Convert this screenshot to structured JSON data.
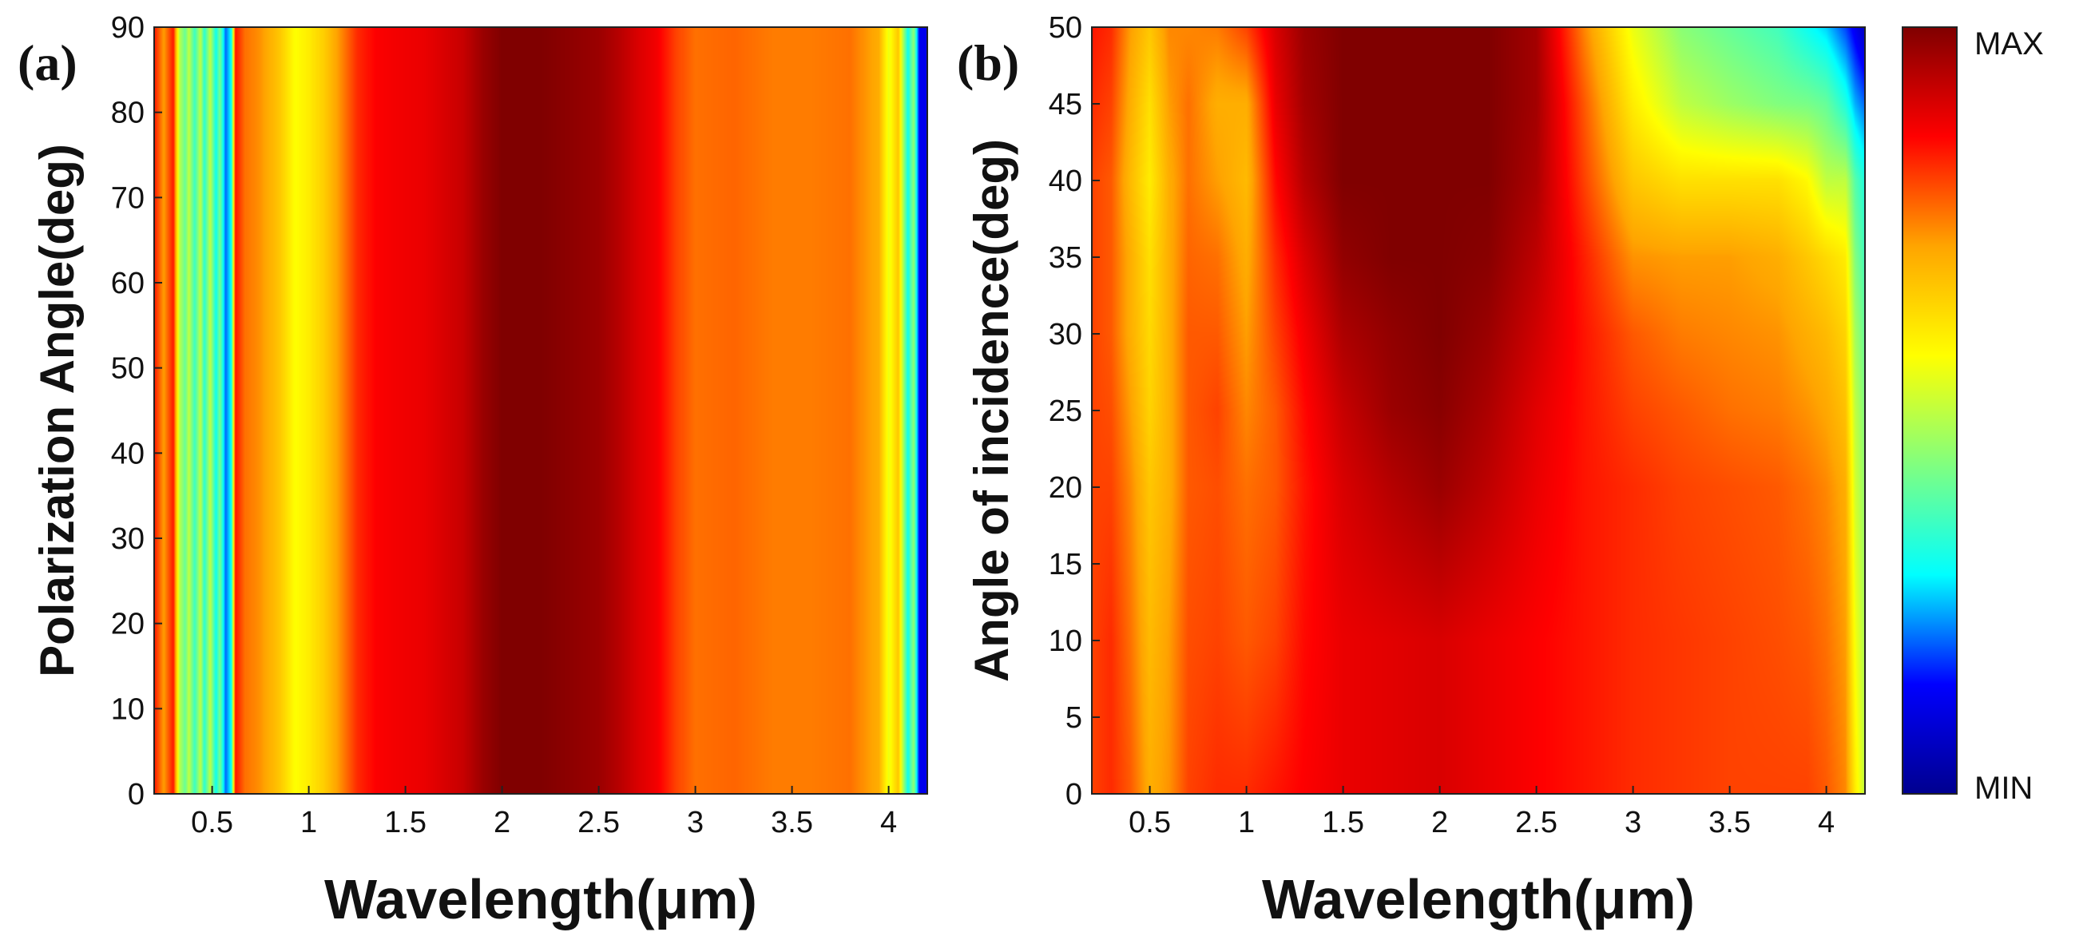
{
  "figure": {
    "colormap": [
      "#00008f",
      "#0000ff",
      "#00ffff",
      "#80ff80",
      "#ffff00",
      "#ffa500",
      "#ff0000",
      "#800000"
    ],
    "colorbar": {
      "max_label": "MAX",
      "min_label": "MIN"
    }
  },
  "chart_data": [
    {
      "panel": "a",
      "label": "(a)",
      "type": "heatmap",
      "xlabel": "Wavelength(μm)",
      "ylabel": "Polarization Angle(deg)",
      "xlim": [
        0.2,
        4.2
      ],
      "ylim": [
        0,
        90
      ],
      "xticks": [
        0.5,
        1,
        1.5,
        2,
        2.5,
        3,
        3.5,
        4
      ],
      "xtick_labels": [
        "0.5",
        "1",
        "1.5",
        "2",
        "2.5",
        "3",
        "3.5",
        "4"
      ],
      "yticks": [
        0,
        10,
        20,
        30,
        40,
        50,
        60,
        70,
        80,
        90
      ],
      "ytick_labels": [
        "0",
        "10",
        "20",
        "30",
        "40",
        "50",
        "60",
        "70",
        "80",
        "90"
      ],
      "description": "normalized intensity (0 = MIN, 1 = MAX), independent of polarization angle",
      "profile_wavelengths": [
        0.2,
        0.25,
        0.3,
        0.33,
        0.36,
        0.38,
        0.41,
        0.44,
        0.46,
        0.49,
        0.52,
        0.54,
        0.57,
        0.6,
        0.62,
        0.67,
        0.75,
        0.85,
        0.93,
        1.0,
        1.08,
        1.15,
        1.25,
        1.35,
        1.45,
        1.6,
        1.8,
        1.9,
        2.0,
        2.2,
        2.4,
        2.5,
        2.6,
        2.7,
        2.8,
        2.9,
        3.0,
        3.2,
        3.4,
        3.6,
        3.8,
        3.95,
        4.0,
        4.05,
        4.1,
        4.13,
        4.16,
        4.2
      ],
      "profile_values": [
        0.84,
        0.72,
        0.84,
        0.5,
        0.4,
        0.5,
        0.35,
        0.5,
        0.33,
        0.5,
        0.3,
        0.42,
        0.2,
        0.3,
        0.84,
        0.76,
        0.73,
        0.66,
        0.57,
        0.6,
        0.65,
        0.72,
        0.82,
        0.86,
        0.87,
        0.88,
        0.92,
        0.97,
        1.0,
        1.0,
        0.98,
        0.97,
        0.94,
        0.9,
        0.87,
        0.8,
        0.76,
        0.77,
        0.75,
        0.75,
        0.76,
        0.7,
        0.55,
        0.66,
        0.3,
        0.45,
        0.12,
        0.12
      ]
    },
    {
      "panel": "b",
      "label": "(b)",
      "type": "heatmap",
      "xlabel": "Wavelength(μm)",
      "ylabel": "Angle of incidence(deg)",
      "xlim": [
        0.2,
        4.2
      ],
      "ylim": [
        0,
        50
      ],
      "xticks": [
        0.5,
        1,
        1.5,
        2,
        2.5,
        3,
        3.5,
        4
      ],
      "xtick_labels": [
        "0.5",
        "1",
        "1.5",
        "2",
        "2.5",
        "3",
        "3.5",
        "4"
      ],
      "yticks": [
        0,
        5,
        10,
        15,
        20,
        25,
        30,
        35,
        40,
        45,
        50
      ],
      "ytick_labels": [
        "0",
        "5",
        "10",
        "15",
        "20",
        "25",
        "30",
        "35",
        "40",
        "45",
        "50"
      ],
      "description": "normalized intensity (0 = MIN, 1 = MAX) vs wavelength and angle of incidence",
      "grid_wavelengths": [
        0.2,
        0.3,
        0.4,
        0.5,
        0.6,
        0.7,
        0.85,
        1.0,
        1.15,
        1.3,
        1.5,
        1.75,
        2.0,
        2.25,
        2.5,
        2.75,
        3.0,
        3.25,
        3.5,
        3.75,
        3.9,
        4.0,
        4.1,
        4.15,
        4.2
      ],
      "grid_angles": [
        0,
        10,
        20,
        25,
        30,
        35,
        40,
        45,
        50
      ],
      "grid_values": [
        [
          0.8,
          0.82,
          0.78,
          0.7,
          0.73,
          0.8,
          0.82,
          0.82,
          0.84,
          0.86,
          0.88,
          0.89,
          0.9,
          0.88,
          0.86,
          0.84,
          0.82,
          0.81,
          0.8,
          0.8,
          0.8,
          0.78,
          0.74,
          0.6,
          0.5
        ],
        [
          0.8,
          0.82,
          0.76,
          0.68,
          0.72,
          0.79,
          0.8,
          0.78,
          0.8,
          0.85,
          0.88,
          0.89,
          0.9,
          0.88,
          0.86,
          0.84,
          0.82,
          0.81,
          0.8,
          0.79,
          0.78,
          0.76,
          0.72,
          0.56,
          0.48
        ],
        [
          0.8,
          0.8,
          0.74,
          0.66,
          0.7,
          0.78,
          0.79,
          0.76,
          0.78,
          0.84,
          0.9,
          0.94,
          0.97,
          0.93,
          0.88,
          0.84,
          0.82,
          0.8,
          0.79,
          0.78,
          0.76,
          0.74,
          0.7,
          0.52,
          0.45
        ],
        [
          0.8,
          0.79,
          0.72,
          0.64,
          0.7,
          0.78,
          0.8,
          0.74,
          0.78,
          0.85,
          0.92,
          0.97,
          0.99,
          0.95,
          0.89,
          0.84,
          0.8,
          0.78,
          0.76,
          0.75,
          0.73,
          0.71,
          0.67,
          0.5,
          0.43
        ],
        [
          0.8,
          0.78,
          0.7,
          0.63,
          0.7,
          0.78,
          0.78,
          0.72,
          0.8,
          0.87,
          0.95,
          0.98,
          1.0,
          0.97,
          0.91,
          0.84,
          0.78,
          0.75,
          0.74,
          0.73,
          0.7,
          0.68,
          0.64,
          0.47,
          0.4
        ],
        [
          0.8,
          0.78,
          0.7,
          0.62,
          0.7,
          0.77,
          0.76,
          0.7,
          0.82,
          0.9,
          0.98,
          1.0,
          1.0,
          0.99,
          0.93,
          0.83,
          0.73,
          0.72,
          0.72,
          0.7,
          0.66,
          0.63,
          0.6,
          0.43,
          0.36
        ],
        [
          0.8,
          0.78,
          0.68,
          0.6,
          0.7,
          0.76,
          0.72,
          0.68,
          0.85,
          0.94,
          1.0,
          1.0,
          1.0,
          1.0,
          0.95,
          0.8,
          0.66,
          0.62,
          0.62,
          0.62,
          0.58,
          0.5,
          0.5,
          0.38,
          0.32
        ],
        [
          0.82,
          0.8,
          0.7,
          0.62,
          0.72,
          0.76,
          0.7,
          0.7,
          0.88,
          0.96,
          1.0,
          1.0,
          1.0,
          1.0,
          0.96,
          0.78,
          0.6,
          0.5,
          0.46,
          0.43,
          0.42,
          0.4,
          0.32,
          0.24,
          0.2
        ],
        [
          0.84,
          0.82,
          0.72,
          0.66,
          0.74,
          0.74,
          0.75,
          0.8,
          0.9,
          0.97,
          1.0,
          1.0,
          1.0,
          1.0,
          0.96,
          0.74,
          0.55,
          0.44,
          0.4,
          0.36,
          0.3,
          0.26,
          0.18,
          0.12,
          0.06
        ]
      ]
    }
  ]
}
